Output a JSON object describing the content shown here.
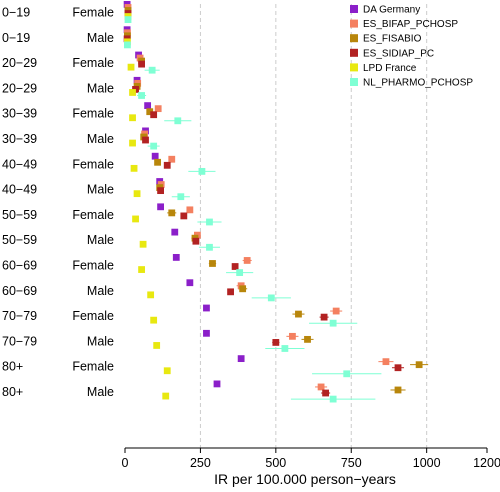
{
  "chart_data": {
    "type": "scatter",
    "xlabel": "IR per 100.000 person−years",
    "xlim": [
      0,
      1200
    ],
    "xticks": [
      0,
      250,
      500,
      750,
      1000,
      1200
    ],
    "gridlines": [
      250,
      500,
      750,
      1000
    ],
    "legend_position": "top-right",
    "rows": [
      {
        "age": "0−19",
        "sex": "Female"
      },
      {
        "age": "0−19",
        "sex": "Male"
      },
      {
        "age": "20−29",
        "sex": "Female"
      },
      {
        "age": "20−29",
        "sex": "Male"
      },
      {
        "age": "30−39",
        "sex": "Female"
      },
      {
        "age": "30−39",
        "sex": "Male"
      },
      {
        "age": "40−49",
        "sex": "Female"
      },
      {
        "age": "40−49",
        "sex": "Male"
      },
      {
        "age": "50−59",
        "sex": "Female"
      },
      {
        "age": "50−59",
        "sex": "Male"
      },
      {
        "age": "60−69",
        "sex": "Female"
      },
      {
        "age": "60−69",
        "sex": "Male"
      },
      {
        "age": "70−79",
        "sex": "Female"
      },
      {
        "age": "70−79",
        "sex": "Male"
      },
      {
        "age": "80+",
        "sex": "Female"
      },
      {
        "age": "80+",
        "sex": "Male"
      }
    ],
    "series": [
      {
        "name": "DA Germany",
        "color": "#8b1fc9",
        "offset": -0.3,
        "points": [
          [
            7,
            10,
            null
          ],
          [
            7,
            8,
            null
          ],
          [
            45,
            40,
            50
          ],
          [
            40,
            35,
            44
          ],
          [
            75,
            70,
            80
          ],
          [
            68,
            64,
            72
          ],
          [
            100,
            95,
            105
          ],
          [
            115,
            110,
            120
          ],
          [
            118,
            113,
            123
          ],
          [
            165,
            158,
            172
          ],
          [
            170,
            164,
            176
          ],
          [
            215,
            208,
            222
          ],
          [
            270,
            262,
            278
          ],
          [
            270,
            262,
            278
          ],
          [
            385,
            375,
            395
          ],
          [
            305,
            298,
            312
          ]
        ]
      },
      {
        "name": "ES_BIFAP_PCHOSP",
        "color": "#f48060",
        "offset": -0.18,
        "points": [
          [
            10,
            8,
            12
          ],
          [
            8,
            6,
            10
          ],
          [
            50,
            44,
            56
          ],
          [
            42,
            37,
            47
          ],
          [
            110,
            100,
            120
          ],
          [
            65,
            58,
            72
          ],
          [
            155,
            145,
            165
          ],
          [
            120,
            112,
            128
          ],
          [
            215,
            205,
            225
          ],
          [
            240,
            230,
            250
          ],
          [
            405,
            390,
            420
          ],
          [
            385,
            370,
            400
          ],
          [
            700,
            680,
            720
          ],
          [
            555,
            535,
            575
          ],
          [
            865,
            840,
            890
          ],
          [
            650,
            630,
            670
          ]
        ]
      },
      {
        "name": "ES_FISABIO",
        "color": "#b8860b",
        "offset": -0.06,
        "points": [
          [
            10,
            8,
            12
          ],
          [
            8,
            6,
            10
          ],
          [
            55,
            45,
            65
          ],
          [
            40,
            32,
            48
          ],
          [
            82,
            72,
            92
          ],
          [
            62,
            54,
            70
          ],
          [
            108,
            98,
            118
          ],
          [
            115,
            105,
            125
          ],
          [
            155,
            140,
            170
          ],
          [
            232,
            220,
            244
          ],
          [
            290,
            278,
            302
          ],
          [
            390,
            375,
            405
          ],
          [
            575,
            555,
            595
          ],
          [
            605,
            585,
            625
          ],
          [
            975,
            945,
            1005
          ],
          [
            905,
            880,
            930
          ]
        ]
      },
      {
        "name": "ES_SIDIAP_PC",
        "color": "#b22222",
        "offset": 0.06,
        "points": [
          [
            10,
            8,
            12
          ],
          [
            7,
            5,
            9
          ],
          [
            55,
            50,
            60
          ],
          [
            35,
            30,
            40
          ],
          [
            95,
            90,
            100
          ],
          [
            68,
            63,
            73
          ],
          [
            140,
            134,
            146
          ],
          [
            118,
            112,
            124
          ],
          [
            195,
            188,
            202
          ],
          [
            235,
            228,
            242
          ],
          [
            365,
            355,
            375
          ],
          [
            350,
            340,
            360
          ],
          [
            660,
            645,
            675
          ],
          [
            500,
            488,
            512
          ],
          [
            905,
            885,
            925
          ],
          [
            665,
            650,
            680
          ]
        ]
      },
      {
        "name": "LPD France",
        "color": "#e8e810",
        "offset": 0.18,
        "points": [
          [
            10,
            0,
            20
          ],
          [
            8,
            0,
            16
          ],
          [
            20,
            15,
            25
          ],
          [
            25,
            20,
            30
          ],
          [
            25,
            20,
            30
          ],
          [
            25,
            20,
            30
          ],
          [
            30,
            25,
            35
          ],
          [
            40,
            35,
            45
          ],
          [
            35,
            30,
            40
          ],
          [
            60,
            55,
            65
          ],
          [
            55,
            50,
            60
          ],
          [
            85,
            80,
            90
          ],
          [
            95,
            90,
            100
          ],
          [
            105,
            100,
            110
          ],
          [
            140,
            135,
            145
          ],
          [
            135,
            130,
            140
          ]
        ]
      },
      {
        "name": "NL_PHARMO_PCHOSP",
        "color": "#7fffd4",
        "offset": 0.3,
        "points": [
          [
            10,
            2,
            18
          ],
          [
            8,
            2,
            14
          ],
          [
            90,
            65,
            115
          ],
          [
            55,
            40,
            70
          ],
          [
            175,
            130,
            220
          ],
          [
            95,
            75,
            115
          ],
          [
            255,
            210,
            300
          ],
          [
            185,
            155,
            215
          ],
          [
            280,
            240,
            320
          ],
          [
            280,
            245,
            315
          ],
          [
            380,
            335,
            425
          ],
          [
            485,
            420,
            550
          ],
          [
            690,
            610,
            770
          ],
          [
            530,
            465,
            595
          ],
          [
            735,
            620,
            850
          ],
          [
            690,
            550,
            830
          ]
        ]
      }
    ]
  }
}
